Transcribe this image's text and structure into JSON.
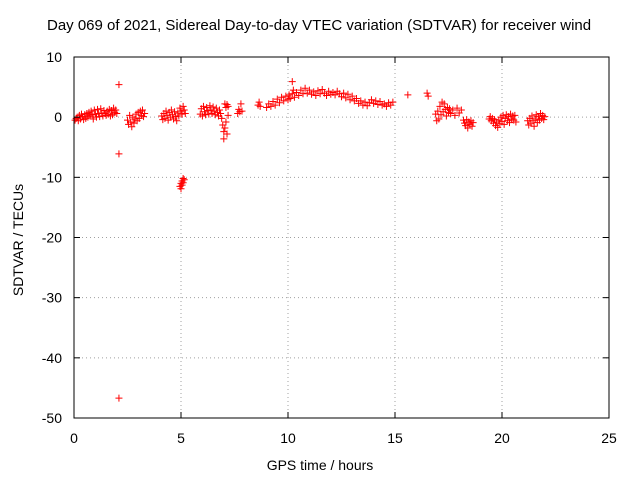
{
  "chart_data": {
    "type": "scatter",
    "title": "Day 069 of 2021, Sidereal Day-to-day VTEC variation (SDTVAR) for receiver wind",
    "xlabel": "GPS time / hours",
    "ylabel": "SDTVAR / TECUs",
    "xlim": [
      0,
      25
    ],
    "ylim": [
      -50,
      10
    ],
    "xticks": [
      0,
      5,
      10,
      15,
      20,
      25
    ],
    "yticks": [
      10,
      0,
      -10,
      -20,
      -30,
      -40,
      -50
    ],
    "xtick_labels": [
      "0",
      "5",
      "10",
      "15",
      "20",
      "25"
    ],
    "ytick_labels": [
      "10",
      "0",
      "-10",
      "-20",
      "-30",
      "-40",
      "-50"
    ],
    "grid": true,
    "marker": "+",
    "color": "#ff0000",
    "series": [
      {
        "name": "SDTVAR",
        "points": [
          [
            0.05,
            -0.5
          ],
          [
            0.1,
            -0.2
          ],
          [
            0.15,
            0.0
          ],
          [
            0.2,
            -0.6
          ],
          [
            0.25,
            0.3
          ],
          [
            0.3,
            -0.3
          ],
          [
            0.35,
            0.5
          ],
          [
            0.4,
            0.1
          ],
          [
            0.45,
            -0.4
          ],
          [
            0.5,
            0.4
          ],
          [
            0.55,
            -0.2
          ],
          [
            0.6,
            0.6
          ],
          [
            0.65,
            0.0
          ],
          [
            0.7,
            0.8
          ],
          [
            0.75,
            0.2
          ],
          [
            0.8,
            1.0
          ],
          [
            0.85,
            0.4
          ],
          [
            0.9,
            -0.3
          ],
          [
            0.95,
            1.2
          ],
          [
            1.0,
            0.5
          ],
          [
            1.05,
            0.0
          ],
          [
            1.1,
            1.3
          ],
          [
            1.15,
            0.6
          ],
          [
            1.2,
            0.1
          ],
          [
            1.25,
            1.4
          ],
          [
            1.3,
            0.7
          ],
          [
            1.35,
            0.2
          ],
          [
            1.4,
            1.1
          ],
          [
            1.45,
            0.6
          ],
          [
            1.5,
            0.3
          ],
          [
            1.55,
            1.0
          ],
          [
            1.6,
            0.5
          ],
          [
            1.65,
            1.3
          ],
          [
            1.7,
            0.2
          ],
          [
            1.75,
            1.1
          ],
          [
            1.8,
            0.4
          ],
          [
            1.85,
            1.5
          ],
          [
            1.9,
            0.8
          ],
          [
            1.95,
            1.2
          ],
          [
            2.0,
            0.6
          ],
          [
            2.1,
            5.4
          ],
          [
            2.1,
            -6.1
          ],
          [
            2.1,
            -46.7
          ],
          [
            2.5,
            -0.5
          ],
          [
            2.55,
            -1.2
          ],
          [
            2.6,
            0.3
          ],
          [
            2.65,
            -0.8
          ],
          [
            2.7,
            -1.6
          ],
          [
            2.75,
            0.0
          ],
          [
            2.8,
            -1.0
          ],
          [
            2.85,
            -0.3
          ],
          [
            2.9,
            0.5
          ],
          [
            2.95,
            -0.6
          ],
          [
            3.0,
            0.8
          ],
          [
            3.05,
            -0.2
          ],
          [
            3.1,
            1.0
          ],
          [
            3.15,
            0.3
          ],
          [
            3.2,
            1.2
          ],
          [
            3.25,
            0.1
          ],
          [
            3.3,
            0.6
          ],
          [
            4.1,
            0.2
          ],
          [
            4.15,
            -0.4
          ],
          [
            4.2,
            0.6
          ],
          [
            4.25,
            -0.2
          ],
          [
            4.3,
            1.0
          ],
          [
            4.35,
            0.3
          ],
          [
            4.4,
            -0.5
          ],
          [
            4.45,
            0.8
          ],
          [
            4.5,
            0.0
          ],
          [
            4.55,
            1.2
          ],
          [
            4.6,
            0.4
          ],
          [
            4.65,
            -0.3
          ],
          [
            4.7,
            0.9
          ],
          [
            4.75,
            0.1
          ],
          [
            4.8,
            -0.6
          ],
          [
            4.85,
            0.7
          ],
          [
            4.9,
            0.2
          ],
          [
            4.95,
            1.5
          ],
          [
            5.0,
            1.0
          ],
          [
            5.05,
            0.5
          ],
          [
            5.1,
            1.8
          ],
          [
            5.15,
            1.2
          ],
          [
            5.2,
            0.6
          ],
          [
            4.95,
            -11.5
          ],
          [
            5.0,
            -11.0
          ],
          [
            5.05,
            -10.6
          ],
          [
            5.1,
            -10.2
          ],
          [
            5.0,
            -11.9
          ],
          [
            5.05,
            -11.3
          ],
          [
            5.1,
            -10.9
          ],
          [
            5.15,
            -10.4
          ],
          [
            5.9,
            0.5
          ],
          [
            5.95,
            1.4
          ],
          [
            6.0,
            0.2
          ],
          [
            6.05,
            1.8
          ],
          [
            6.1,
            0.9
          ],
          [
            6.15,
            0.4
          ],
          [
            6.2,
            1.6
          ],
          [
            6.25,
            1.1
          ],
          [
            6.3,
            0.5
          ],
          [
            6.35,
            1.9
          ],
          [
            6.4,
            1.2
          ],
          [
            6.45,
            0.6
          ],
          [
            6.5,
            1.7
          ],
          [
            6.55,
            1.0
          ],
          [
            6.6,
            0.4
          ],
          [
            6.65,
            1.5
          ],
          [
            6.7,
            0.8
          ],
          [
            6.75,
            0.2
          ],
          [
            6.8,
            1.2
          ],
          [
            6.85,
            0.6
          ],
          [
            6.9,
            -0.2
          ],
          [
            6.95,
            -1.3
          ],
          [
            7.0,
            -2.4
          ],
          [
            7.0,
            -3.6
          ],
          [
            7.05,
            -1.8
          ],
          [
            7.1,
            -0.8
          ],
          [
            7.15,
            -2.8
          ],
          [
            7.2,
            0.3
          ],
          [
            7.05,
            2.2
          ],
          [
            7.1,
            1.6
          ],
          [
            7.15,
            2.1
          ],
          [
            7.2,
            1.8
          ],
          [
            7.65,
            0.6
          ],
          [
            7.7,
            1.3
          ],
          [
            7.75,
            0.9
          ],
          [
            7.8,
            2.2
          ],
          [
            7.85,
            1.0
          ],
          [
            8.6,
            2.0
          ],
          [
            8.65,
            2.5
          ],
          [
            8.7,
            1.8
          ],
          [
            9.0,
            1.6
          ],
          [
            9.1,
            2.2
          ],
          [
            9.2,
            1.8
          ],
          [
            9.3,
            2.6
          ],
          [
            9.4,
            2.0
          ],
          [
            9.5,
            3.0
          ],
          [
            9.6,
            2.4
          ],
          [
            9.7,
            3.3
          ],
          [
            9.8,
            2.7
          ],
          [
            9.9,
            3.5
          ],
          [
            10.0,
            2.9
          ],
          [
            10.05,
            3.7
          ],
          [
            10.1,
            3.1
          ],
          [
            10.2,
            3.9
          ],
          [
            10.25,
            4.5
          ],
          [
            10.3,
            3.3
          ],
          [
            10.4,
            4.1
          ],
          [
            10.5,
            3.6
          ],
          [
            10.6,
            4.5
          ],
          [
            10.7,
            3.9
          ],
          [
            10.8,
            4.8
          ],
          [
            10.9,
            4.0
          ],
          [
            11.0,
            4.5
          ],
          [
            11.1,
            3.8
          ],
          [
            11.2,
            4.2
          ],
          [
            11.3,
            3.6
          ],
          [
            11.4,
            4.4
          ],
          [
            11.5,
            3.9
          ],
          [
            11.6,
            4.6
          ],
          [
            11.7,
            4.0
          ],
          [
            11.8,
            3.6
          ],
          [
            11.9,
            4.3
          ],
          [
            12.0,
            3.8
          ],
          [
            12.1,
            4.1
          ],
          [
            12.2,
            3.7
          ],
          [
            12.3,
            4.3
          ],
          [
            12.4,
            3.9
          ],
          [
            12.5,
            3.4
          ],
          [
            12.6,
            4.0
          ],
          [
            12.7,
            3.2
          ],
          [
            12.8,
            3.8
          ],
          [
            12.9,
            2.9
          ],
          [
            13.0,
            3.5
          ],
          [
            13.1,
            2.7
          ],
          [
            13.2,
            3.1
          ],
          [
            13.3,
            2.3
          ],
          [
            13.4,
            2.7
          ],
          [
            13.5,
            2.0
          ],
          [
            13.6,
            2.5
          ],
          [
            13.7,
            1.9
          ],
          [
            13.8,
            2.4
          ],
          [
            13.9,
            2.9
          ],
          [
            14.0,
            2.3
          ],
          [
            14.1,
            2.7
          ],
          [
            14.2,
            2.1
          ],
          [
            14.3,
            2.6
          ],
          [
            14.4,
            2.0
          ],
          [
            14.5,
            2.2
          ],
          [
            14.6,
            1.8
          ],
          [
            14.7,
            2.4
          ],
          [
            14.8,
            2.0
          ],
          [
            14.9,
            2.5
          ],
          [
            10.2,
            5.9
          ],
          [
            15.6,
            3.7
          ],
          [
            16.5,
            4.0
          ],
          [
            16.55,
            3.5
          ],
          [
            16.9,
            0.5
          ],
          [
            16.95,
            -0.6
          ],
          [
            17.0,
            1.0
          ],
          [
            17.05,
            -0.3
          ],
          [
            17.1,
            1.8
          ],
          [
            17.15,
            0.4
          ],
          [
            17.2,
            2.5
          ],
          [
            17.25,
            0.9
          ],
          [
            17.3,
            2.2
          ],
          [
            17.35,
            1.3
          ],
          [
            17.4,
            0.2
          ],
          [
            17.45,
            1.6
          ],
          [
            17.5,
            0.8
          ],
          [
            17.55,
            1.4
          ],
          [
            17.6,
            0.6
          ],
          [
            17.7,
            1.2
          ],
          [
            17.8,
            0.3
          ],
          [
            17.9,
            1.5
          ],
          [
            18.0,
            0.7
          ],
          [
            18.1,
            1.2
          ],
          [
            18.2,
            -0.5
          ],
          [
            18.25,
            -1.0
          ],
          [
            18.3,
            -1.4
          ],
          [
            18.35,
            -0.4
          ],
          [
            18.4,
            -1.8
          ],
          [
            18.45,
            -0.8
          ],
          [
            18.5,
            -1.2
          ],
          [
            18.55,
            -0.6
          ],
          [
            18.6,
            -1.5
          ],
          [
            18.65,
            -0.9
          ],
          [
            19.4,
            -0.3
          ],
          [
            19.45,
            0.1
          ],
          [
            19.5,
            -0.6
          ],
          [
            19.55,
            -0.2
          ],
          [
            19.6,
            -1.0
          ],
          [
            19.65,
            -0.4
          ],
          [
            19.7,
            -1.4
          ],
          [
            19.75,
            -0.8
          ],
          [
            19.8,
            -1.7
          ],
          [
            19.85,
            -0.5
          ],
          [
            19.9,
            -1.1
          ],
          [
            19.95,
            0.0
          ],
          [
            20.0,
            -0.7
          ],
          [
            20.05,
            0.3
          ],
          [
            20.1,
            -1.2
          ],
          [
            20.15,
            -0.2
          ],
          [
            20.2,
            0.4
          ],
          [
            20.25,
            -0.6
          ],
          [
            20.3,
            0.1
          ],
          [
            20.35,
            -0.9
          ],
          [
            20.4,
            0.5
          ],
          [
            20.45,
            -0.3
          ],
          [
            20.5,
            0.2
          ],
          [
            20.55,
            -0.5
          ],
          [
            20.6,
            0.3
          ],
          [
            20.65,
            -0.8
          ],
          [
            21.2,
            -0.6
          ],
          [
            21.25,
            -1.3
          ],
          [
            21.3,
            -0.2
          ],
          [
            21.35,
            -1.0
          ],
          [
            21.4,
            0.2
          ],
          [
            21.45,
            -0.6
          ],
          [
            21.5,
            -1.5
          ],
          [
            21.55,
            -0.3
          ],
          [
            21.6,
            0.4
          ],
          [
            21.65,
            -0.9
          ],
          [
            21.7,
            0.1
          ],
          [
            21.75,
            -0.5
          ],
          [
            21.8,
            0.6
          ],
          [
            21.85,
            -0.2
          ],
          [
            21.9,
            0.3
          ],
          [
            21.95,
            -0.4
          ],
          [
            22.0,
            0.1
          ]
        ]
      }
    ]
  }
}
